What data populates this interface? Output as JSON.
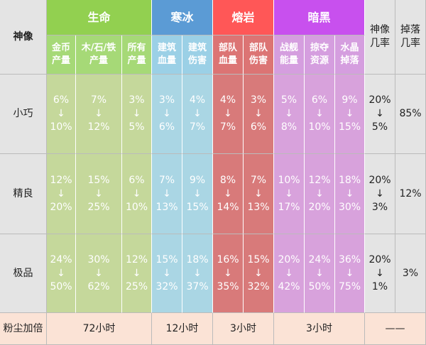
{
  "header": {
    "title": "神像",
    "god_rate": "神像\n几率",
    "drop_rate": "掉落\n几率"
  },
  "groups": [
    {
      "name": "生命",
      "columns": [
        "金币\n产量",
        "木/石/铁\n产量",
        "所有\n产量"
      ]
    },
    {
      "name": "寒冰",
      "columns": [
        "建筑\n血量",
        "建筑\n伤害"
      ]
    },
    {
      "name": "熔岩",
      "columns": [
        "部队\n血量",
        "部队\n伤害"
      ]
    },
    {
      "name": "暗黑",
      "columns": [
        "战舰\n能量",
        "掠夺\n资源",
        "水晶\n掉落"
      ]
    }
  ],
  "rows": [
    {
      "label": "小巧",
      "cells": [
        [
          "6%",
          "10%"
        ],
        [
          "7%",
          "12%"
        ],
        [
          "3%",
          "5%"
        ],
        [
          "3%",
          "6%"
        ],
        [
          "4%",
          "7%"
        ],
        [
          "4%",
          "7%"
        ],
        [
          "3%",
          "6%"
        ],
        [
          "5%",
          "8%"
        ],
        [
          "6%",
          "10%"
        ],
        [
          "9%",
          "15%"
        ]
      ],
      "god_rate": [
        "20%",
        "5%"
      ],
      "drop_rate": "85%"
    },
    {
      "label": "精良",
      "cells": [
        [
          "12%",
          "20%"
        ],
        [
          "15%",
          "25%"
        ],
        [
          "6%",
          "10%"
        ],
        [
          "7%",
          "13%"
        ],
        [
          "9%",
          "15%"
        ],
        [
          "8%",
          "14%"
        ],
        [
          "7%",
          "13%"
        ],
        [
          "10%",
          "17%"
        ],
        [
          "12%",
          "20%"
        ],
        [
          "18%",
          "30%"
        ]
      ],
      "god_rate": [
        "20%",
        "3%"
      ],
      "drop_rate": "12%"
    },
    {
      "label": "极品",
      "cells": [
        [
          "24%",
          "50%"
        ],
        [
          "30%",
          "62%"
        ],
        [
          "12%",
          "25%"
        ],
        [
          "15%",
          "32%"
        ],
        [
          "18%",
          "37%"
        ],
        [
          "16%",
          "35%"
        ],
        [
          "15%",
          "32%"
        ],
        [
          "20%",
          "42%"
        ],
        [
          "24%",
          "50%"
        ],
        [
          "36%",
          "75%"
        ]
      ],
      "god_rate": [
        "20%",
        "1%"
      ],
      "drop_rate": "3%"
    }
  ],
  "footer": {
    "label": "粉尘加倍",
    "values": [
      "72小时",
      "12小时",
      "3小时",
      "3小时"
    ],
    "last": "——"
  }
}
